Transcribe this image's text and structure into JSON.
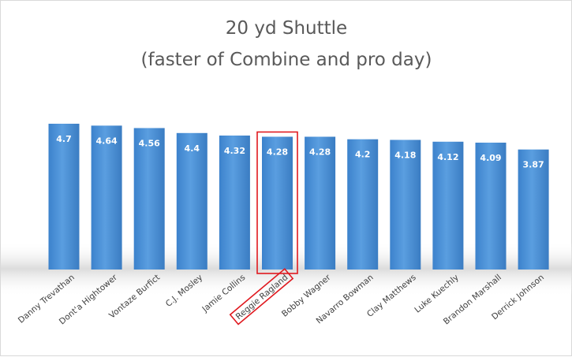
{
  "chart_data": {
    "type": "bar",
    "title": "20 yd Shuttle",
    "subtitle": "(faster of Combine and pro day)",
    "xlabel": "",
    "ylabel": "",
    "categories": [
      "Danny Trevathan",
      "Dont'a Hightower",
      "Vontaze Burfict",
      "C.J. Mosley",
      "Jamie Collins",
      "Reggie Ragland",
      "Bobby Wagner",
      "Navarro Bowman",
      "Clay Matthews",
      "Luke Kuechly",
      "Brandon Marshall",
      "Derrick Johnson"
    ],
    "values": [
      4.7,
      4.64,
      4.56,
      4.4,
      4.32,
      4.28,
      4.28,
      4.2,
      4.18,
      4.12,
      4.09,
      3.87
    ],
    "value_labels": [
      "4.7",
      "4.64",
      "4.56",
      "4.4",
      "4.32",
      "4.28",
      "4.28",
      "4.2",
      "4.18",
      "4.12",
      "4.09",
      "3.87"
    ],
    "ylim": [
      0,
      4.7
    ],
    "grid": false,
    "legend": "none",
    "highlighted_category": "Reggie Ragland",
    "colors": {
      "bar": "#4a8fd4",
      "bar_dark": "#3a7dc4",
      "highlight": "#e0191f",
      "title": "#595959",
      "tick": "#404040"
    }
  }
}
